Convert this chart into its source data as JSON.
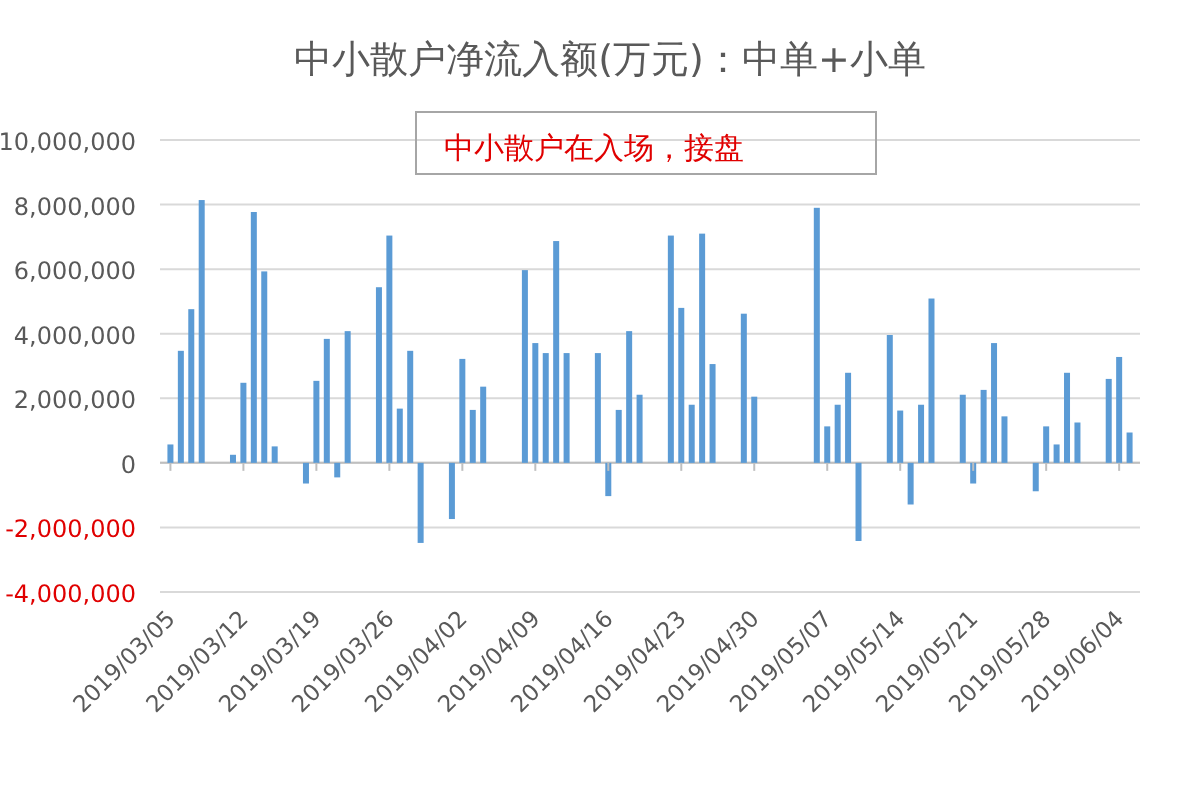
{
  "chart_data": {
    "type": "bar",
    "title": "中小散户净流入额(万元)：中单+小单",
    "annotations": [
      "中小散户在入场，接盘"
    ],
    "color": "#5b9bd5",
    "grid": "y",
    "x": [
      "2019-03-05",
      "2019-03-06",
      "2019-03-07",
      "2019-03-08",
      "2019-03-11",
      "2019-03-12",
      "2019-03-13",
      "2019-03-14",
      "2019-03-15",
      "2019-03-18",
      "2019-03-19",
      "2019-03-20",
      "2019-03-21",
      "2019-03-22",
      "2019-03-25",
      "2019-03-26",
      "2019-03-27",
      "2019-03-28",
      "2019-03-29",
      "2019-04-01",
      "2019-04-02",
      "2019-04-03",
      "2019-04-04",
      "2019-04-08",
      "2019-04-09",
      "2019-04-10",
      "2019-04-11",
      "2019-04-12",
      "2019-04-15",
      "2019-04-16",
      "2019-04-17",
      "2019-04-18",
      "2019-04-19",
      "2019-04-22",
      "2019-04-23",
      "2019-04-24",
      "2019-04-25",
      "2019-04-26",
      "2019-04-29",
      "2019-04-30",
      "2019-05-06",
      "2019-05-07",
      "2019-05-08",
      "2019-05-09",
      "2019-05-10",
      "2019-05-13",
      "2019-05-14",
      "2019-05-15",
      "2019-05-16",
      "2019-05-17",
      "2019-05-20",
      "2019-05-21",
      "2019-05-22",
      "2019-05-23",
      "2019-05-24",
      "2019-05-27",
      "2019-05-28",
      "2019-05-29",
      "2019-05-30",
      "2019-05-31",
      "2019-06-03",
      "2019-06-04",
      "2019-06-05"
    ],
    "values": [
      570000,
      3470000,
      4760000,
      8140000,
      250000,
      2480000,
      7770000,
      5930000,
      510000,
      -640000,
      2540000,
      3840000,
      -450000,
      4080000,
      5440000,
      7040000,
      1680000,
      3470000,
      -2480000,
      -1740000,
      3220000,
      1640000,
      2360000,
      5970000,
      3710000,
      3400000,
      6870000,
      3400000,
      3400000,
      -1030000,
      1640000,
      4080000,
      2110000,
      7040000,
      4800000,
      1800000,
      7100000,
      3060000,
      4620000,
      2050000,
      7900000,
      1130000,
      1800000,
      2790000,
      -2420000,
      3960000,
      1620000,
      -1290000,
      1800000,
      5090000,
      2110000,
      -640000,
      2260000,
      3710000,
      1440000,
      -880000,
      1130000,
      570000,
      2790000,
      1250000,
      2600000,
      3280000,
      940000
    ],
    "xlim": [
      "2019-03-04",
      "2019-06-06"
    ],
    "xticks": [
      {
        "value": "2019-03-05",
        "label": "2019/03/05"
      },
      {
        "value": "2019-03-12",
        "label": "2019/03/12"
      },
      {
        "value": "2019-03-19",
        "label": "2019/03/19"
      },
      {
        "value": "2019-03-26",
        "label": "2019/03/26"
      },
      {
        "value": "2019-04-02",
        "label": "2019/04/02"
      },
      {
        "value": "2019-04-09",
        "label": "2019/04/09"
      },
      {
        "value": "2019-04-16",
        "label": "2019/04/16"
      },
      {
        "value": "2019-04-23",
        "label": "2019/04/23"
      },
      {
        "value": "2019-04-30",
        "label": "2019/04/30"
      },
      {
        "value": "2019-05-07",
        "label": "2019/05/07"
      },
      {
        "value": "2019-05-14",
        "label": "2019/05/14"
      },
      {
        "value": "2019-05-21",
        "label": "2019/05/21"
      },
      {
        "value": "2019-05-28",
        "label": "2019/05/28"
      },
      {
        "value": "2019-06-04",
        "label": "2019/06/04"
      }
    ],
    "ylim": [
      -4000000,
      10000000
    ],
    "yticks": [
      {
        "value": -4000000,
        "label": "-4,000,000"
      },
      {
        "value": -2000000,
        "label": "-2,000,000"
      },
      {
        "value": 0,
        "label": "0"
      },
      {
        "value": 2000000,
        "label": "2,000,000"
      },
      {
        "value": 4000000,
        "label": "4,000,000"
      },
      {
        "value": 6000000,
        "label": "6,000,000"
      },
      {
        "value": 8000000,
        "label": "8,000,000"
      },
      {
        "value": 10000000,
        "label": "10,000,000"
      }
    ]
  }
}
